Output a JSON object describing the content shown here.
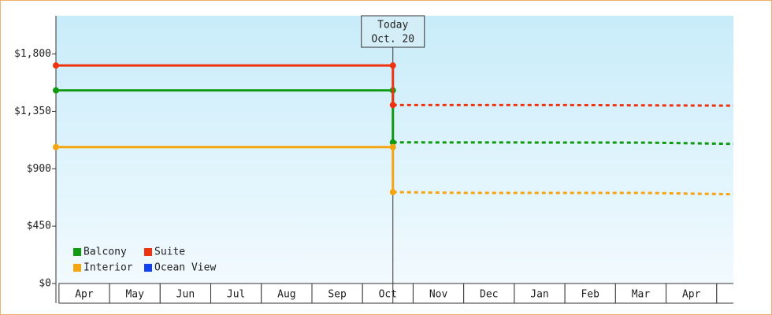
{
  "chart_data": {
    "type": "line",
    "categories": [
      "Apr",
      "May",
      "Jun",
      "Jul",
      "Aug",
      "Sep",
      "Oct",
      "Nov",
      "Dec",
      "Jan",
      "Feb",
      "Mar",
      "Apr",
      null
    ],
    "xlim": [
      -0.06,
      13.33
    ],
    "ylim": [
      0,
      2100
    ],
    "yticks": [
      {
        "value": 0,
        "label": "$0"
      },
      {
        "value": 450,
        "label": "$450"
      },
      {
        "value": 900,
        "label": "$900"
      },
      {
        "value": 1350,
        "label": "$1,350"
      },
      {
        "value": 1800,
        "label": "$1,800"
      }
    ],
    "annotation": {
      "x": 6.6,
      "lines": [
        "Today",
        "Oct. 20"
      ]
    },
    "series": [
      {
        "name": "Balcony",
        "color": "#119911",
        "x": [
          -0.06,
          6.6,
          6.6
        ],
        "values": [
          1515,
          1515,
          1107
        ],
        "forecast_x": [
          6.6,
          11.6,
          13.33
        ],
        "forecast_values": [
          1107,
          1105,
          1095
        ]
      },
      {
        "name": "Suite",
        "color": "#ee3311",
        "x": [
          -0.06,
          6.6,
          6.6
        ],
        "values": [
          1710,
          1710,
          1400
        ],
        "forecast_x": [
          6.6,
          9.7,
          13.33
        ],
        "forecast_values": [
          1400,
          1400,
          1395
        ]
      },
      {
        "name": "Interior",
        "color": "#f5a511",
        "x": [
          -0.06,
          6.6,
          6.6
        ],
        "values": [
          1070,
          1070,
          717
        ],
        "forecast_x": [
          6.6,
          8.1,
          11.6,
          13.33
        ],
        "forecast_values": [
          717,
          710,
          710,
          700
        ]
      },
      {
        "name": "Ocean View",
        "color": "#1144ee",
        "x": [],
        "values": [],
        "forecast_x": [],
        "forecast_values": []
      }
    ]
  }
}
